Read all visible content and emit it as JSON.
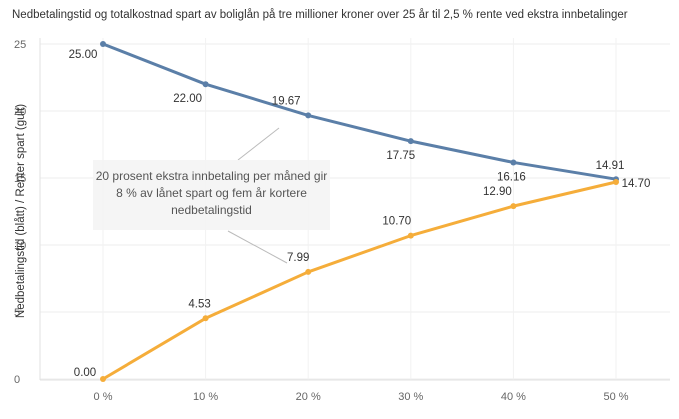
{
  "chart_data": {
    "type": "line",
    "title": "Nedbetalingstid og totalkostnad spart av boliglån på tre millioner kroner over 25 år til 2,5 % rente ved ekstra innbetalinger",
    "ylabel": "Nedbetalingstid (blått) / Renter spart (gult)",
    "xlabel": "",
    "categories": [
      "0 %",
      "10 %",
      "20 %",
      "30 %",
      "40 %",
      "50 %"
    ],
    "ylim": [
      0,
      25
    ],
    "yticks": [
      0,
      5,
      10,
      15,
      20,
      25
    ],
    "grid": true,
    "series": [
      {
        "color": "#5b7fa8",
        "values": [
          25.0,
          22.0,
          19.67,
          17.75,
          16.16,
          14.91
        ],
        "labels": [
          "25.00",
          "22.00",
          "19.67",
          "17.75",
          "16.16",
          "14.91"
        ]
      },
      {
        "color": "#f5ad3a",
        "values": [
          0.0,
          4.53,
          7.99,
          10.7,
          12.9,
          14.7
        ],
        "labels": [
          "0.00",
          "4.53",
          "7.99",
          "10.70",
          "12.90",
          "14.70"
        ]
      }
    ],
    "annotation": "20 prosent ekstra innbetaling per måned gir 8 % av lånet spart og fem år kortere nedbetalingstid"
  }
}
